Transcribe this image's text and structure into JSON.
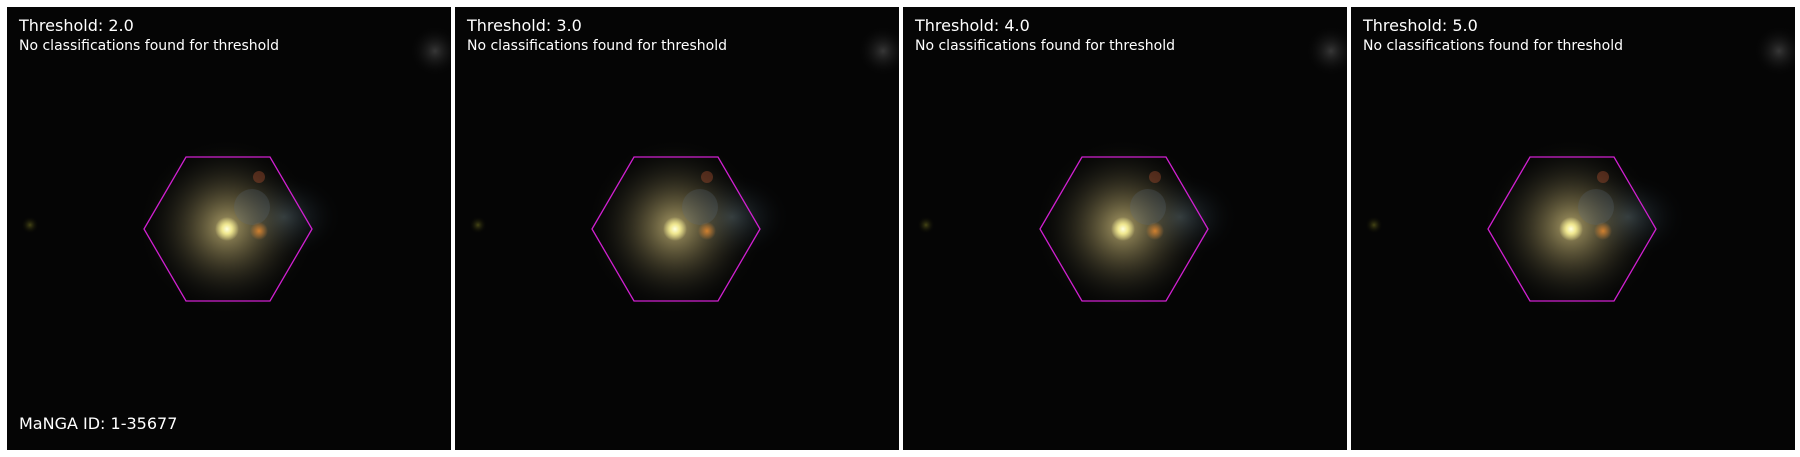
{
  "panels": [
    {
      "title": "Threshold: 2.0",
      "subtitle": "No classifications found for threshold"
    },
    {
      "title": "Threshold: 3.0",
      "subtitle": "No classifications found for threshold"
    },
    {
      "title": "Threshold: 4.0",
      "subtitle": "No classifications found for threshold"
    },
    {
      "title": "Threshold: 5.0",
      "subtitle": "No classifications found for threshold"
    }
  ],
  "footer": {
    "manga_id": "MaNGA ID: 1-35677"
  },
  "colors": {
    "hexagon": "#d020d0",
    "background": "#050505",
    "text": "#ffffff"
  }
}
